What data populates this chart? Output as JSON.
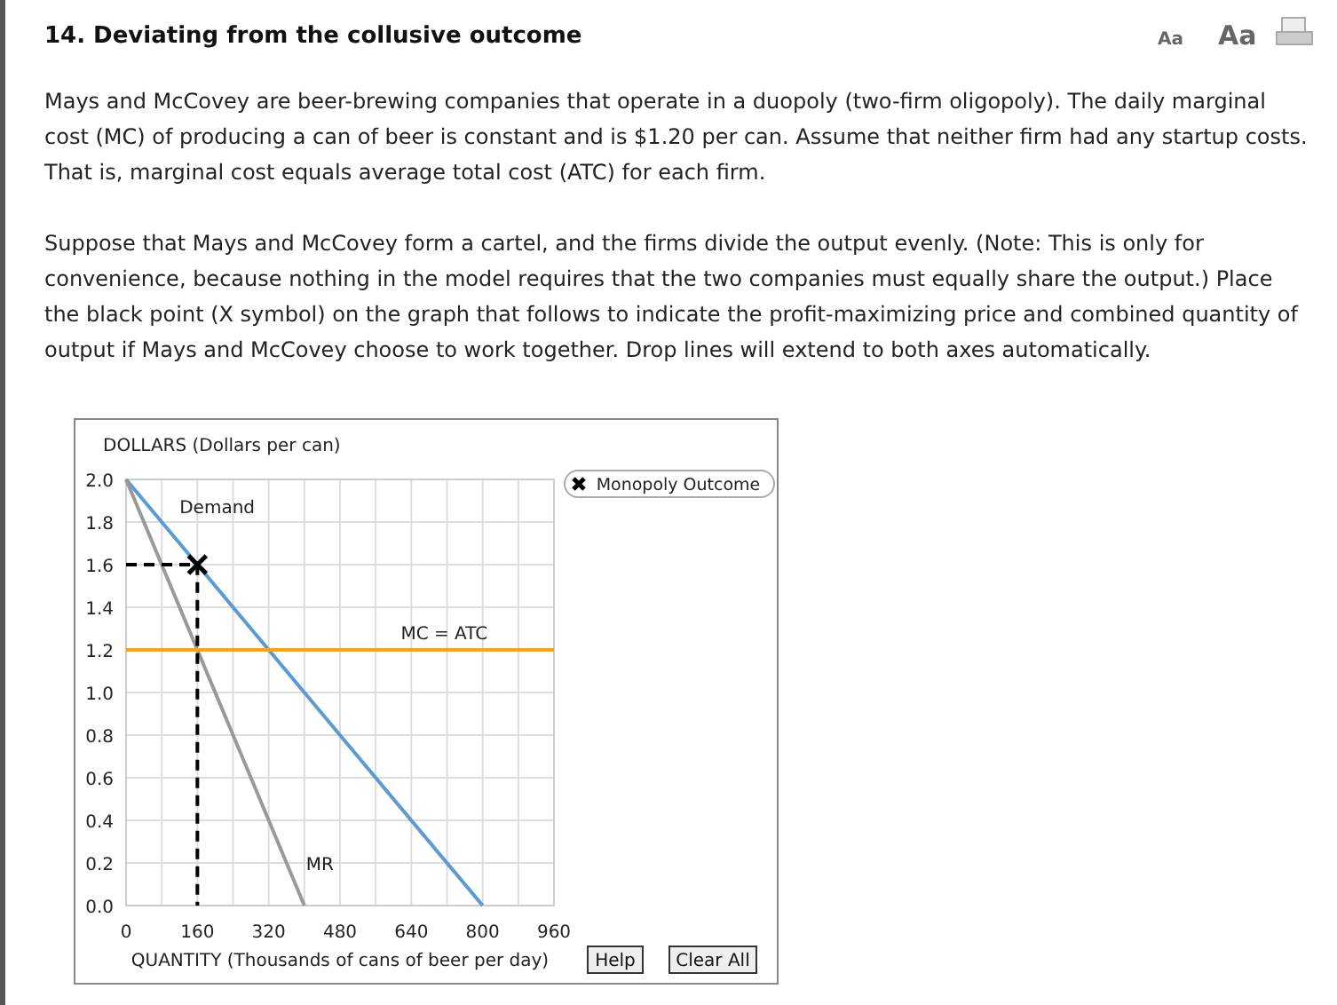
{
  "chart_data": {
    "type": "line",
    "title": "14.  Deviating from the collusive outcome",
    "annotations": [
      "Mays and McCovey are beer-brewing companies that operate in a duopoly (two-firm oligopoly). The daily marginal cost (MC) of producing a can of beer is constant and is $1.20 per can. Assume that neither firm had any startup costs. That is, marginal cost equals average total cost (ATC) for each firm.",
      "Suppose that Mays and McCovey form a cartel, and the firms divide the output evenly. (Note: This is only for convenience, because nothing in the model requires that the two companies must equally share the output.) Place the black point (X symbol) on the graph that follows to indicate the profit-maximizing price and combined quantity of output if Mays and McCovey choose to work together. Drop lines will extend to both axes automatically.",
      "Aa",
      "Aa",
      "Help",
      "Clear All"
    ],
    "xlabel": "QUANTITY (Thousands of cans of beer per day)",
    "ylabel": "DOLLARS (Dollars per can)",
    "xlim": [
      0,
      960
    ],
    "ylim": [
      0,
      2
    ],
    "xticks": [
      0,
      {
        "value": 80,
        "label": null
      },
      160,
      {
        "value": 240,
        "label": null
      },
      320,
      {
        "value": 400,
        "label": null
      },
      480,
      {
        "value": 560,
        "label": null
      },
      640,
      {
        "value": 720,
        "label": null
      },
      800,
      {
        "value": 880,
        "label": null
      },
      960
    ],
    "yticks": [
      "0.0",
      0.2,
      0.4,
      0.6,
      0.8,
      "1.0",
      1.2,
      1.4,
      1.6,
      1.8,
      "2.0"
    ],
    "grid": true,
    "legend": "top right",
    "marker": "none",
    "series": [
      {
        "name": "Demand",
        "color": "#5b9bd5",
        "x": [
          0,
          800
        ],
        "values": [
          2,
          0
        ]
      },
      {
        "name": "MR",
        "color": "#999999",
        "x": [
          0,
          400
        ],
        "values": [
          2,
          0
        ]
      },
      {
        "name": "MC = ATC",
        "color": "#ffa500",
        "x": [
          0,
          960
        ],
        "values": [
          1.2,
          1.2
        ]
      },
      {
        "color": "#000000",
        "x": [
          0,
          160,
          160
        ],
        "values": [
          1.6,
          1.6,
          0
        ],
        "line_style": "dashed"
      },
      {
        "name": "Monopoly Outcome",
        "type": "scatter",
        "marker": "cross",
        "color": "#000000",
        "x": [
          160
        ],
        "values": [
          1.6
        ]
      }
    ]
  }
}
